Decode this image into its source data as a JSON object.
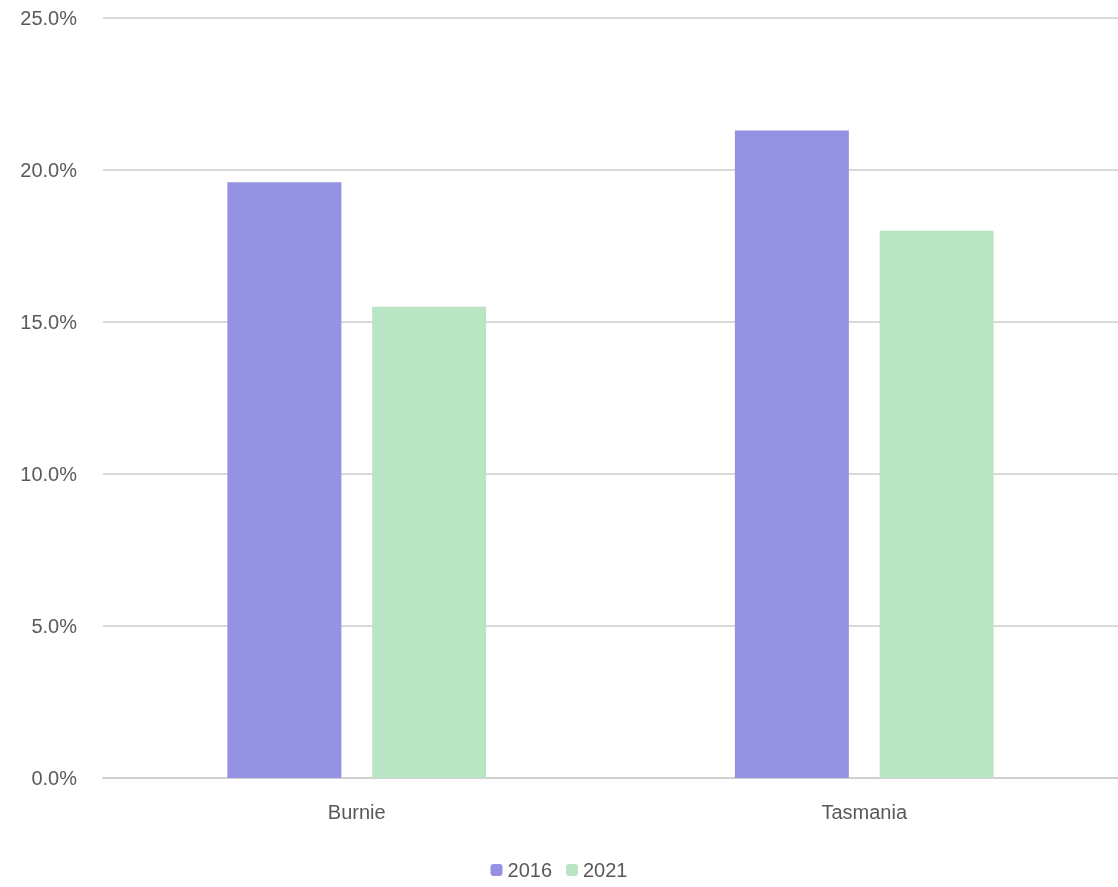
{
  "chart_data": {
    "type": "bar",
    "categories": [
      "Burnie",
      "Tasmania"
    ],
    "series": [
      {
        "name": "2016",
        "color": "#9591e3",
        "values": [
          19.6,
          21.3
        ]
      },
      {
        "name": "2021",
        "color": "#b9e5c4",
        "values": [
          15.5,
          18.0
        ]
      }
    ],
    "ylim": [
      0,
      25
    ],
    "yticks": [
      {
        "value": 0,
        "label": "0.0%"
      },
      {
        "value": 5,
        "label": "5.0%"
      },
      {
        "value": 10,
        "label": "10.0%"
      },
      {
        "value": 15,
        "label": "15.0%"
      },
      {
        "value": 20,
        "label": "20.0%"
      },
      {
        "value": 25,
        "label": "25.0%"
      }
    ],
    "grid": "y",
    "legend": "bottom"
  }
}
